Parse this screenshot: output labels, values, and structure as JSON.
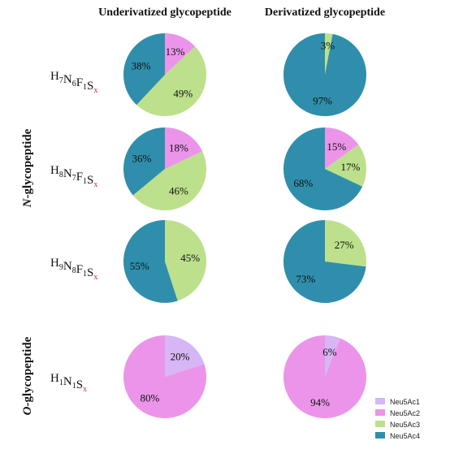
{
  "colors": {
    "Neu5Ac1": "#d7b6f5",
    "Neu5Ac2": "#eb94ea",
    "Neu5Ac3": "#bde08c",
    "Neu5Ac4": "#2f8eac",
    "x_marker": "#e0262a"
  },
  "column_headers": [
    "Underivatized glycopeptide",
    "Derivatized glycopeptide"
  ],
  "sections": {
    "n": {
      "prefix": "N",
      "rest": "-glycopeptide"
    },
    "o": {
      "prefix": "O",
      "rest": "-glycopeptide"
    }
  },
  "rows": [
    {
      "formula": [
        {
          "el": "H",
          "n": "7"
        },
        {
          "el": "N",
          "n": "6"
        },
        {
          "el": "F",
          "n": "1"
        },
        {
          "el": "S",
          "n": "x"
        }
      ]
    },
    {
      "formula": [
        {
          "el": "H",
          "n": "8"
        },
        {
          "el": "N",
          "n": "7"
        },
        {
          "el": "F",
          "n": "1"
        },
        {
          "el": "S",
          "n": "x"
        }
      ]
    },
    {
      "formula": [
        {
          "el": "H",
          "n": "9"
        },
        {
          "el": "N",
          "n": "8"
        },
        {
          "el": "F",
          "n": "1"
        },
        {
          "el": "S",
          "n": "x"
        }
      ]
    },
    {
      "formula": [
        {
          "el": "H",
          "n": "1"
        },
        {
          "el": "N",
          "n": "1"
        },
        {
          "el": "S",
          "n": "x"
        }
      ]
    }
  ],
  "chart_data": {
    "type": "pie",
    "legend": [
      "Neu5Ac1",
      "Neu5Ac2",
      "Neu5Ac3",
      "Neu5Ac4"
    ],
    "legend_position": "bottom-right",
    "pies": [
      {
        "row": 0,
        "col": 0,
        "slices": [
          {
            "series": "Neu5Ac2",
            "value": 13,
            "label": "13%"
          },
          {
            "series": "Neu5Ac3",
            "value": 49,
            "label": "49%"
          },
          {
            "series": "Neu5Ac4",
            "value": 38,
            "label": "38%"
          }
        ]
      },
      {
        "row": 0,
        "col": 1,
        "slices": [
          {
            "series": "Neu5Ac3",
            "value": 3,
            "label": "3%"
          },
          {
            "series": "Neu5Ac4",
            "value": 97,
            "label": "97%"
          }
        ]
      },
      {
        "row": 1,
        "col": 0,
        "slices": [
          {
            "series": "Neu5Ac2",
            "value": 18,
            "label": "18%"
          },
          {
            "series": "Neu5Ac3",
            "value": 46,
            "label": "46%"
          },
          {
            "series": "Neu5Ac4",
            "value": 36,
            "label": "36%"
          }
        ]
      },
      {
        "row": 1,
        "col": 1,
        "slices": [
          {
            "series": "Neu5Ac2",
            "value": 15,
            "label": "15%"
          },
          {
            "series": "Neu5Ac3",
            "value": 17,
            "label": "17%"
          },
          {
            "series": "Neu5Ac4",
            "value": 68,
            "label": "68%"
          }
        ]
      },
      {
        "row": 2,
        "col": 0,
        "slices": [
          {
            "series": "Neu5Ac3",
            "value": 45,
            "label": "45%"
          },
          {
            "series": "Neu5Ac4",
            "value": 55,
            "label": "55%"
          }
        ]
      },
      {
        "row": 2,
        "col": 1,
        "slices": [
          {
            "series": "Neu5Ac3",
            "value": 27,
            "label": "27%"
          },
          {
            "series": "Neu5Ac4",
            "value": 73,
            "label": "73%"
          }
        ]
      },
      {
        "row": 3,
        "col": 0,
        "slices": [
          {
            "series": "Neu5Ac1",
            "value": 20,
            "label": "20%"
          },
          {
            "series": "Neu5Ac2",
            "value": 80,
            "label": "80%"
          }
        ]
      },
      {
        "row": 3,
        "col": 1,
        "slices": [
          {
            "series": "Neu5Ac1",
            "value": 6,
            "label": "6%"
          },
          {
            "series": "Neu5Ac2",
            "value": 94,
            "label": "94%"
          }
        ]
      }
    ]
  }
}
